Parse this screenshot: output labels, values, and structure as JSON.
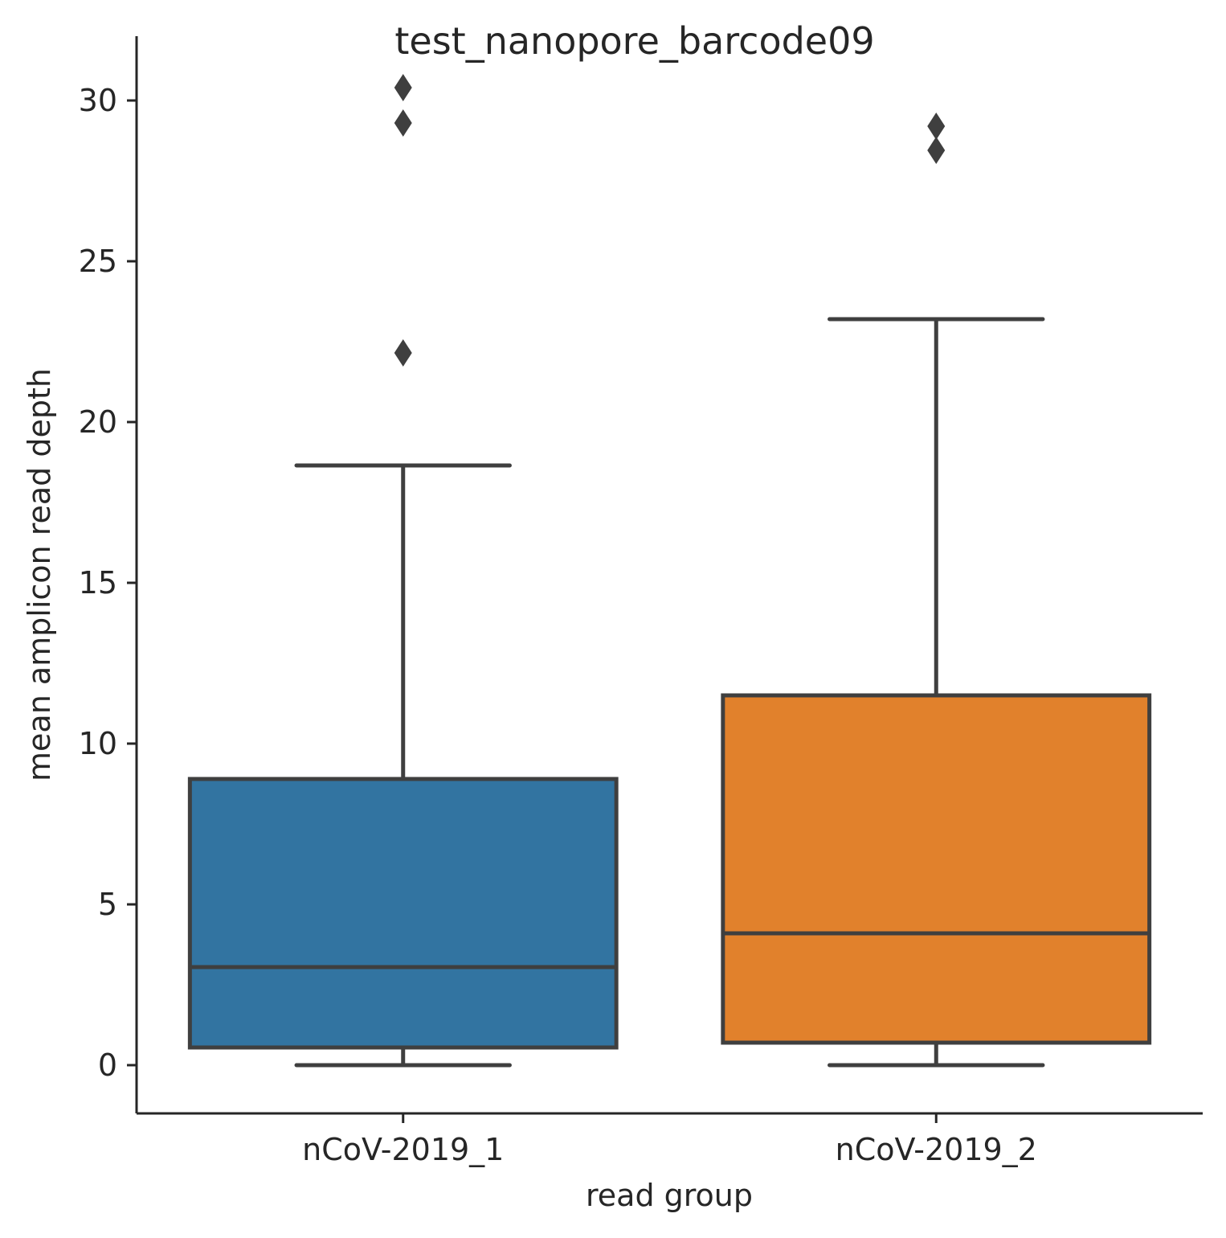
{
  "chart_data": {
    "type": "box",
    "title": "test_nanopore_barcode09",
    "xlabel": "read group",
    "ylabel": "mean amplicon read depth",
    "ylim": [
      -1.5,
      32.0
    ],
    "yticks": [
      0,
      5,
      10,
      15,
      20,
      25,
      30
    ],
    "grid": false,
    "categories": [
      "nCoV-2019_1",
      "nCoV-2019_2"
    ],
    "boxes": [
      {
        "category": "nCoV-2019_1",
        "color": "#3274a1",
        "whisker_low": 0.0,
        "q1": 0.55,
        "median": 3.05,
        "q3": 8.9,
        "whisker_high": 18.65,
        "outliers": [
          22.15,
          29.3,
          30.4
        ]
      },
      {
        "category": "nCoV-2019_2",
        "color": "#e1812c",
        "whisker_low": 0.0,
        "q1": 0.7,
        "median": 4.1,
        "q3": 11.5,
        "whisker_high": 23.2,
        "outliers": [
          28.45,
          29.2
        ]
      }
    ],
    "line_color": "#3f3f3f"
  }
}
